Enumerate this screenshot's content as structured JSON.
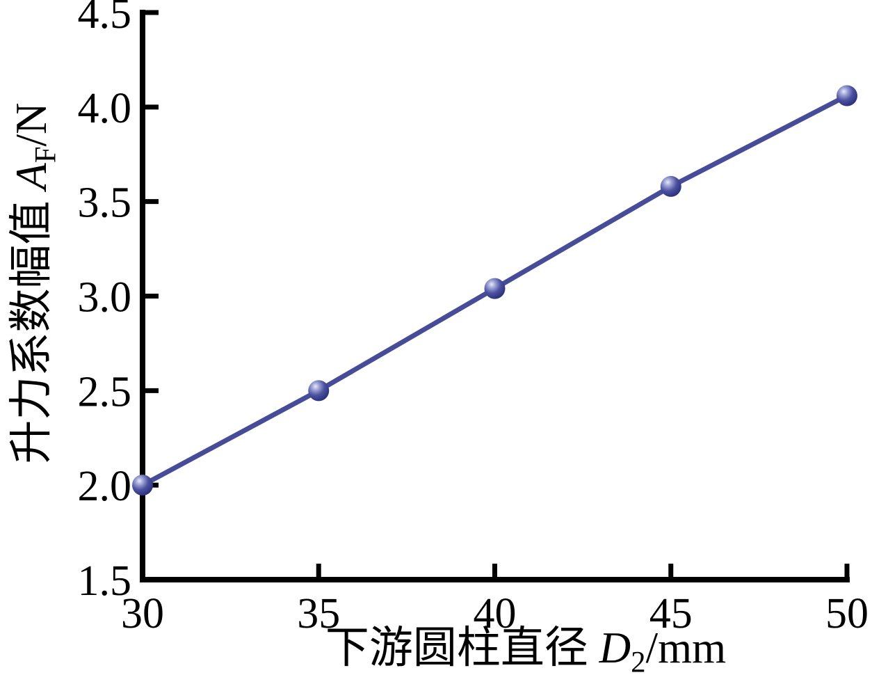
{
  "figure": {
    "background": "#ffffff",
    "x_axis_title": {
      "prefix": "下游圆柱直径 ",
      "var": "D",
      "sub": "2",
      "suffix": "/mm"
    },
    "y_axis_title": {
      "prefix": "升力系数幅值 ",
      "var": "A",
      "sub": "F",
      "suffix": "/N"
    }
  },
  "chart_data": {
    "type": "line",
    "series": [
      {
        "name": "lift-coefficient-amplitude",
        "x": [
          30,
          35,
          40,
          45,
          50
        ],
        "y": [
          2.0,
          2.5,
          3.04,
          3.58,
          4.06
        ]
      }
    ],
    "xlabel": "下游圆柱直径 D2/mm",
    "ylabel": "升力系数幅值 AF/N",
    "xlim": [
      30,
      50
    ],
    "ylim": [
      1.5,
      4.5
    ],
    "xticks": [
      30,
      35,
      40,
      45,
      50
    ],
    "yticks": [
      1.5,
      2.0,
      2.5,
      3.0,
      3.5,
      4.0,
      4.5
    ],
    "xtick_labels": [
      "30",
      "35",
      "40",
      "45",
      "50"
    ],
    "ytick_labels": [
      "1.5",
      "2.0",
      "2.5",
      "3.0",
      "3.5",
      "4.0",
      "4.5"
    ],
    "grid": false,
    "legend": false,
    "colors": {
      "line": "#474c99",
      "marker_highlight": "#e8eaf8",
      "marker_light": "#9aa0d4",
      "marker_mid": "#4d52a0",
      "marker_dark": "#2e3380",
      "marker_edge": "#252a6e",
      "axis": "#000000",
      "tick_label": "#000000"
    }
  }
}
